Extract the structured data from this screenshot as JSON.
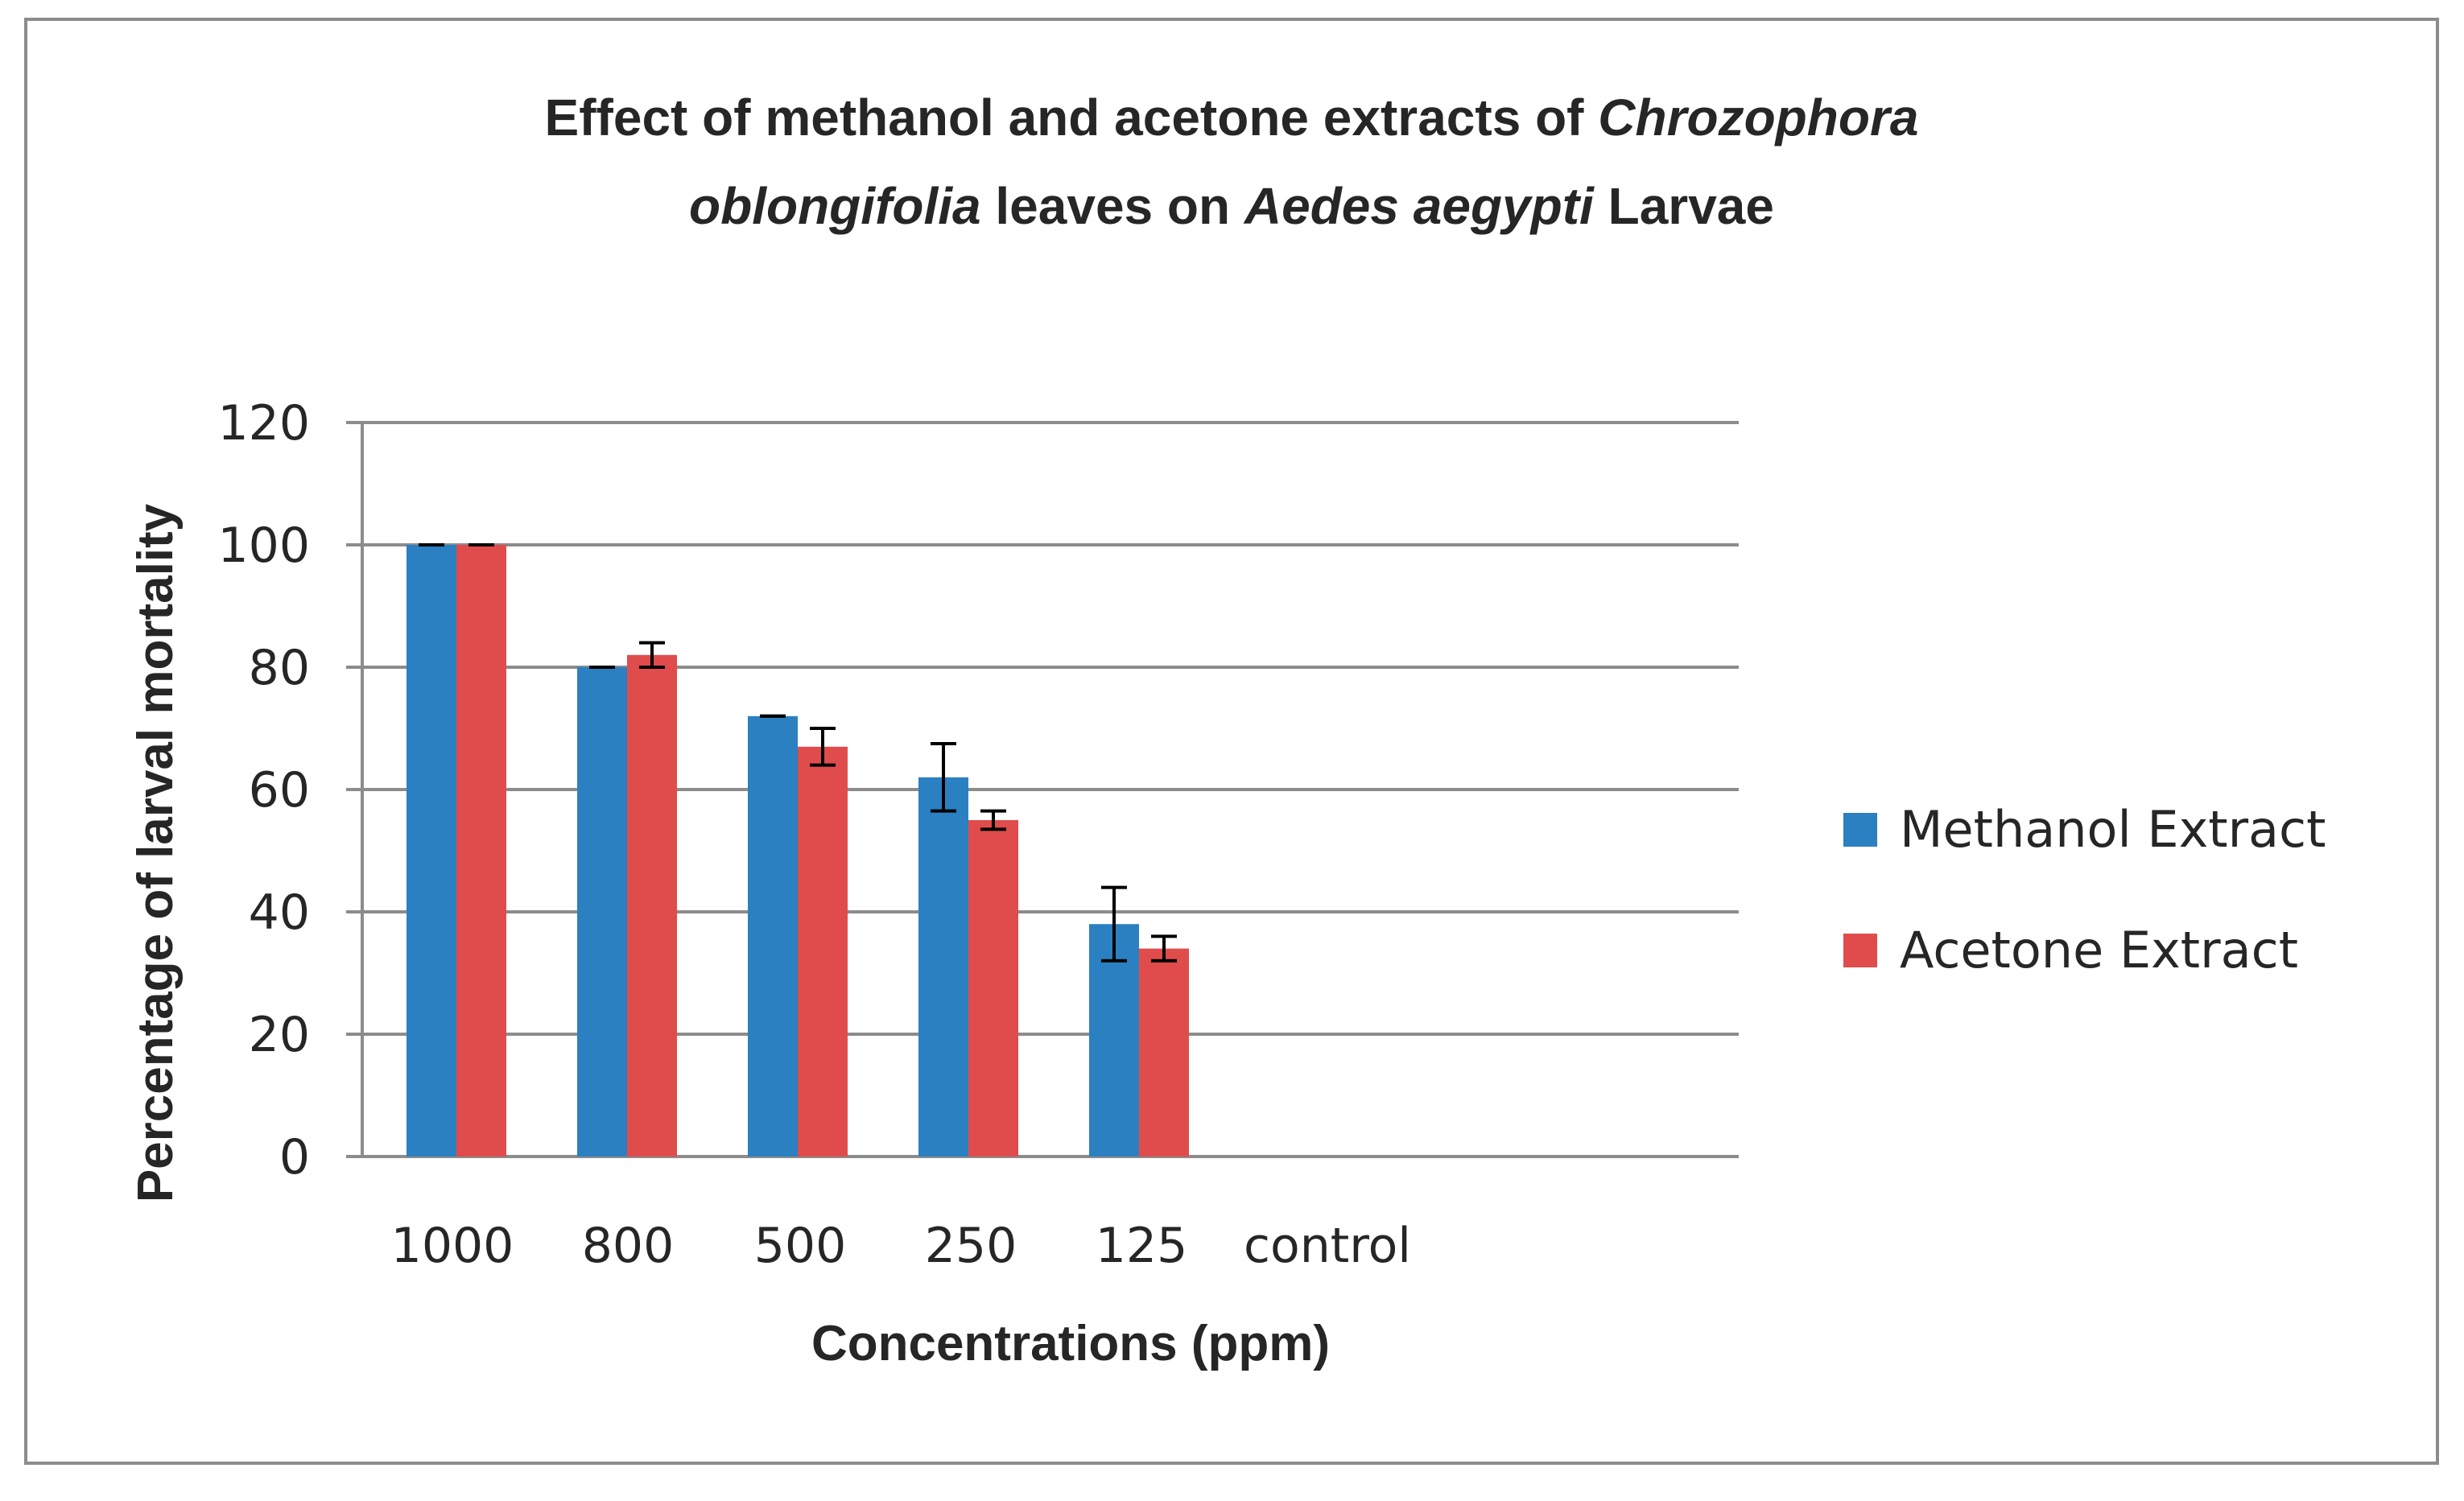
{
  "chart_data": {
    "type": "bar",
    "title": {
      "line1": [
        {
          "text": "Effect of methanol and acetone extracts of ",
          "italic": false
        },
        {
          "text": "Chrozophora",
          "italic": true
        }
      ],
      "line2": [
        {
          "text": "oblongifolia",
          "italic": true
        },
        {
          "text": " leaves on  ",
          "italic": false
        },
        {
          "text": "Aedes aegypti",
          "italic": true
        },
        {
          "text": " Larvae",
          "italic": false
        }
      ]
    },
    "xlabel": "Concentrations (ppm)",
    "ylabel": "Percentage of larval mortality",
    "categories": [
      "1000",
      "800",
      "500",
      "250",
      "125",
      "control"
    ],
    "ylim": [
      0,
      120
    ],
    "yticks": [
      0,
      20,
      40,
      60,
      80,
      100,
      120
    ],
    "grid": true,
    "legend_position": "right",
    "series": [
      {
        "name": "Methanol Extract",
        "color": "#2a80c1",
        "values": [
          100,
          80,
          72,
          62,
          38,
          0
        ],
        "errors": [
          0,
          0,
          0,
          5.5,
          6,
          0
        ]
      },
      {
        "name": "Acetone Extract",
        "color": "#e04c4c",
        "values": [
          100,
          82,
          67,
          55,
          34,
          0
        ],
        "errors": [
          0,
          2,
          3,
          1.5,
          2,
          0
        ]
      }
    ]
  }
}
